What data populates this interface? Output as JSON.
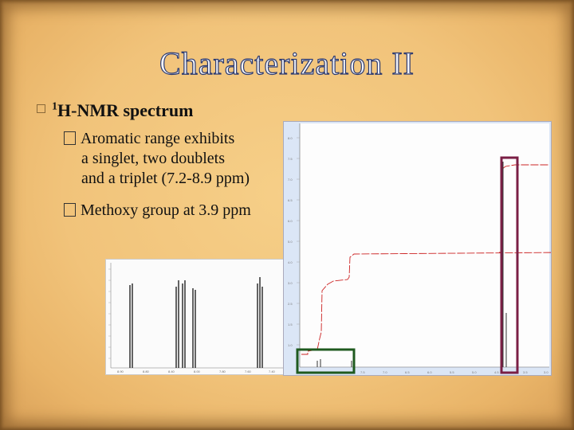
{
  "slide": {
    "title": "Characterization II",
    "bullet": {
      "sup": "1",
      "text": "H-NMR spectrum"
    },
    "subbullets": [
      {
        "lines": [
          "Aromatic range exhibits",
          "a singlet, two doublets",
          "and a triplet (7.2-8.9 ppm)"
        ]
      },
      {
        "lines": [
          "Methoxy group at 3.9 ppm"
        ]
      }
    ]
  },
  "colors": {
    "highlight_green": "#1f5a1f",
    "highlight_purple": "#7a1f45",
    "integral_red": "#cc2222",
    "title_outline": "#2d3a6e"
  }
}
